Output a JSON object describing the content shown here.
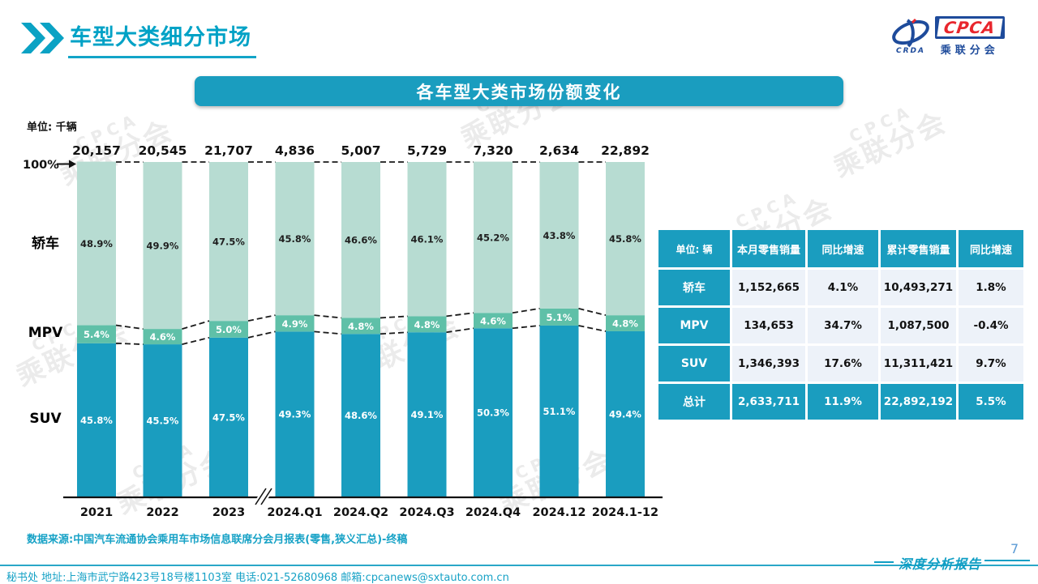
{
  "page": {
    "title": "车型大类细分市场",
    "banner_title": "各车型大类市场份额变化",
    "source_note": "数据来源:中国汽车流通协会乘用车市场信息联席分会月报表(零售,狭义汇总)-终稿",
    "footer_contact": "秘书处  地址:上海市武宁路423号18号楼1103室 电话:021-52680968  邮箱:cpcanews@sxtauto.com.cn",
    "report_label": "深度分析报告",
    "page_number": "7",
    "watermark_text": "乘联分会",
    "watermark_en": "CPCA"
  },
  "logo": {
    "brand": "CPCA",
    "subtitle": "乘联分会",
    "swoosh_caption": "CRDA"
  },
  "chart": {
    "unit_label": "单位: 千辆",
    "hundred_label": "100%",
    "side_labels": [
      "轿车",
      "MPV",
      "SUV"
    ]
  },
  "chart_data": {
    "type": "bar",
    "stacked": true,
    "unit": "千辆",
    "title": "各车型大类市场份额变化",
    "categories": [
      "2021",
      "2022",
      "2023",
      "2024.Q1",
      "2024.Q2",
      "2024.Q3",
      "2024.Q4",
      "2024.12",
      "2024.1-12"
    ],
    "totals": [
      "20,157",
      "20,545",
      "21,707",
      "4,836",
      "5,007",
      "5,729",
      "7,320",
      "2,634",
      "22,892"
    ],
    "series_order": "bottom-up",
    "series": [
      {
        "name": "SUV",
        "color": "#1a9dbf",
        "label_color": "#ffffff",
        "values": [
          45.8,
          45.5,
          47.5,
          49.3,
          48.6,
          49.1,
          50.3,
          51.1,
          49.4
        ]
      },
      {
        "name": "MPV",
        "color": "#5fc0a8",
        "label_color": "#ffffff",
        "values": [
          5.4,
          4.6,
          5.0,
          4.9,
          4.8,
          4.8,
          4.6,
          5.1,
          4.8
        ]
      },
      {
        "name": "轿车",
        "color": "#b7dcd2",
        "label_color": "#1f1f1f",
        "values": [
          48.9,
          49.9,
          47.5,
          45.8,
          46.6,
          46.1,
          45.2,
          43.8,
          45.8
        ]
      }
    ],
    "ylim": [
      0,
      100
    ],
    "grid": false,
    "axis_break_after": "2023",
    "legend_position": "left-side-labels"
  },
  "table": {
    "headers": [
      "单位: 辆",
      "本月零售销量",
      "同比增速",
      "累计零售销量",
      "同比增速"
    ],
    "rows": [
      {
        "label": "轿车",
        "values": [
          "1,152,665",
          "4.1%",
          "10,493,271",
          "1.8%"
        ],
        "is_total": false
      },
      {
        "label": "MPV",
        "values": [
          "134,653",
          "34.7%",
          "1,087,500",
          "-0.4%"
        ],
        "is_total": false
      },
      {
        "label": "SUV",
        "values": [
          "1,346,393",
          "17.6%",
          "11,311,421",
          "9.7%"
        ],
        "is_total": false
      },
      {
        "label": "总计",
        "values": [
          "2,633,711",
          "11.9%",
          "22,892,192",
          "5.5%"
        ],
        "is_total": true
      }
    ]
  },
  "colors": {
    "teal": "#1a9dbf",
    "title_text": "#00a2c6",
    "sedan_segment": "#b7dcd2",
    "mpv_segment": "#5fc0a8",
    "suv_segment": "#1a9dbf",
    "table_row_bg": "#edf2f9",
    "page_number_blue": "#5b9bd5"
  }
}
